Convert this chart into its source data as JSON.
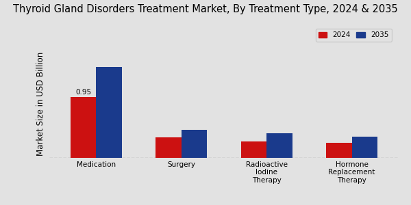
{
  "title": "Thyroid Gland Disorders Treatment Market, By Treatment Type, 2024 & 2035",
  "ylabel": "Market Size in USD Billion",
  "categories": [
    "Medication",
    "Surgery",
    "Radioactive\nIodine\nTherapy",
    "Hormone\nReplacement\nTherapy"
  ],
  "values_2024": [
    0.95,
    0.32,
    0.26,
    0.24
  ],
  "values_2035": [
    1.42,
    0.44,
    0.38,
    0.33
  ],
  "color_2024": "#cc1111",
  "color_2035": "#1a3a8c",
  "annotation_value": "0.95",
  "annotation_category_index": 0,
  "background_color": "#e2e2e2",
  "legend_labels": [
    "2024",
    "2035"
  ],
  "title_fontsize": 10.5,
  "ylabel_fontsize": 8.5,
  "tick_fontsize": 7.5,
  "bar_width": 0.3,
  "ylim": [
    0,
    1.7
  ]
}
